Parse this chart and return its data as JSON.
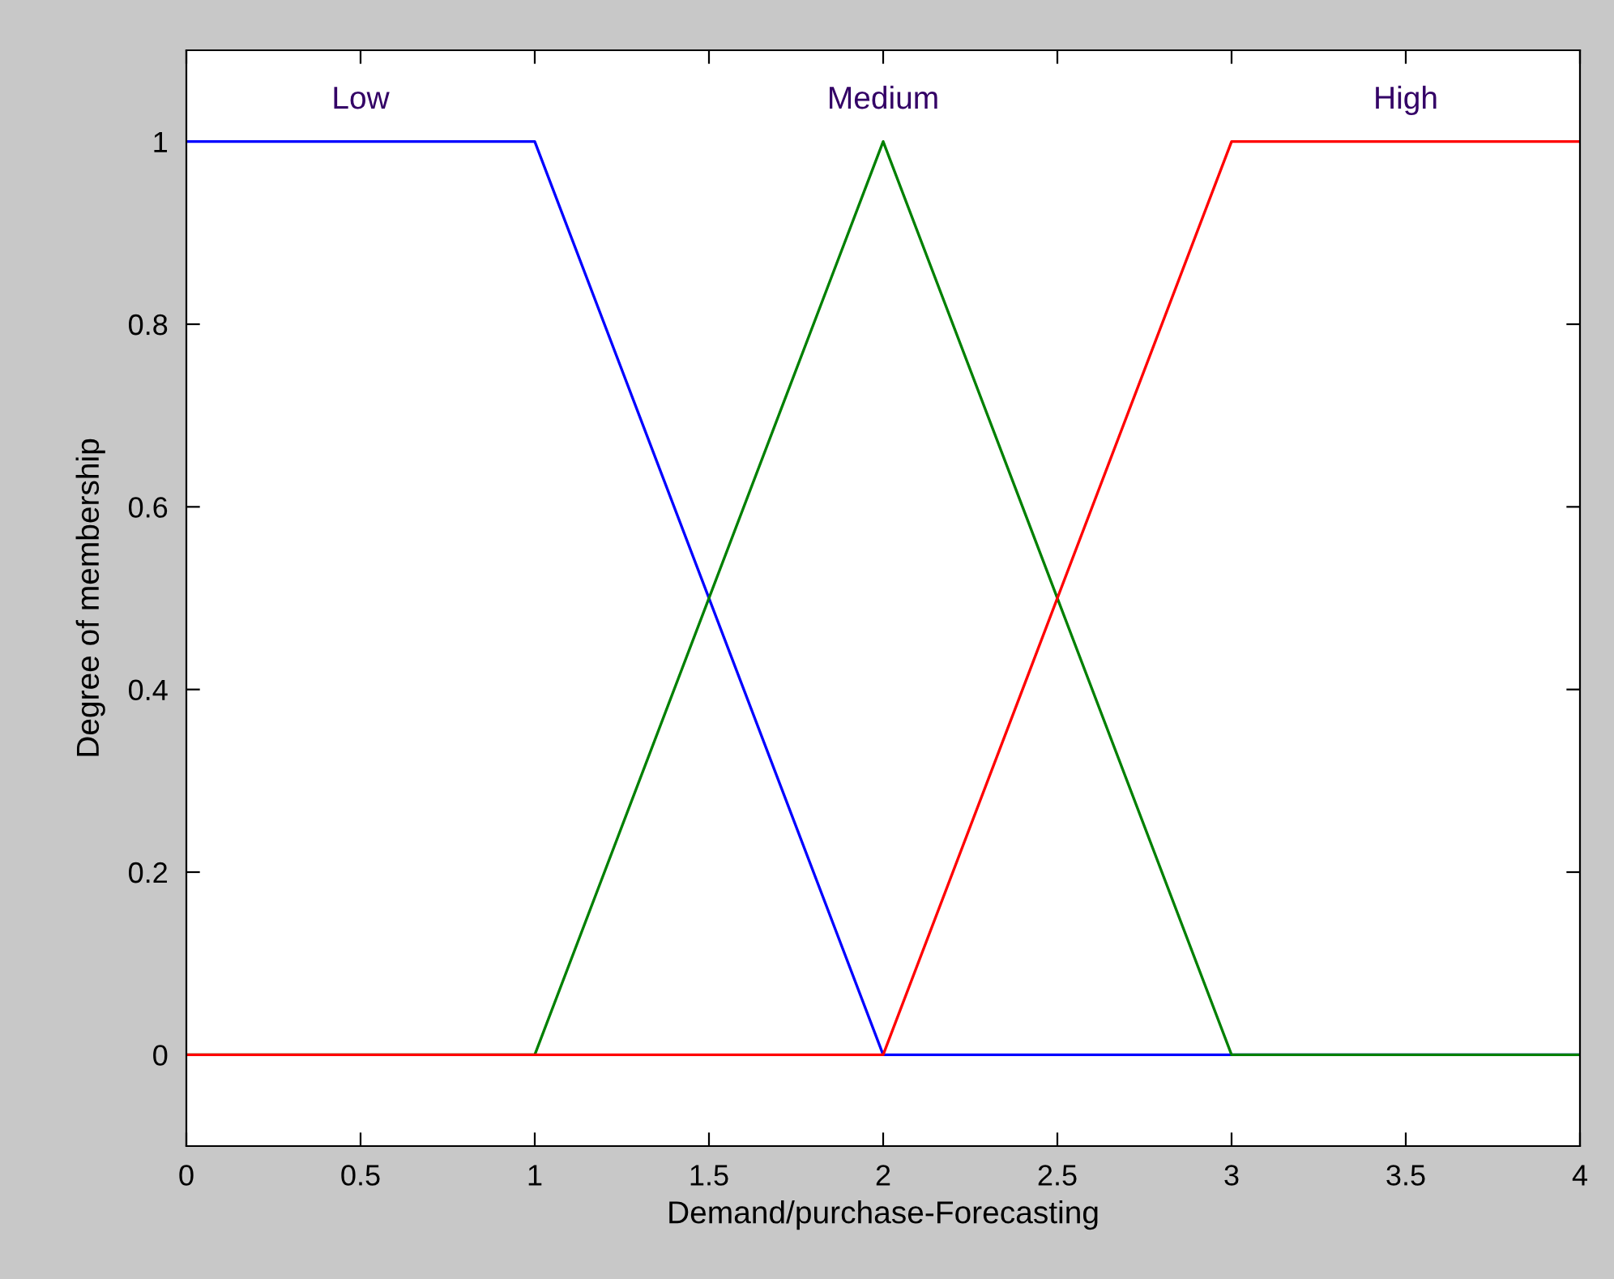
{
  "chart_data": {
    "type": "line",
    "xlabel": "Demand/purchase-Forecasting",
    "ylabel": "Degree of membership",
    "series": [
      {
        "name": "Low",
        "color": "#0000ff",
        "x": [
          0,
          1,
          2,
          4
        ],
        "values": [
          1,
          1,
          0,
          0
        ]
      },
      {
        "name": "Medium",
        "color": "#008000",
        "x": [
          0,
          1,
          2,
          3,
          4
        ],
        "values": [
          0,
          0,
          1,
          0,
          0
        ]
      },
      {
        "name": "High",
        "color": "#ff0000",
        "x": [
          0,
          2,
          3,
          4
        ],
        "values": [
          0,
          0,
          1,
          1
        ]
      }
    ],
    "xlim": [
      0,
      4
    ],
    "xticks": [
      0,
      0.5,
      1,
      1.5,
      2,
      2.5,
      3,
      3.5,
      4
    ],
    "ylim": [
      -0.1,
      1.1
    ],
    "yticks": [
      0,
      0.2,
      0.4,
      0.6,
      0.8,
      1
    ],
    "grid": false,
    "legend": false,
    "marker": "none",
    "line_style": "solid"
  }
}
